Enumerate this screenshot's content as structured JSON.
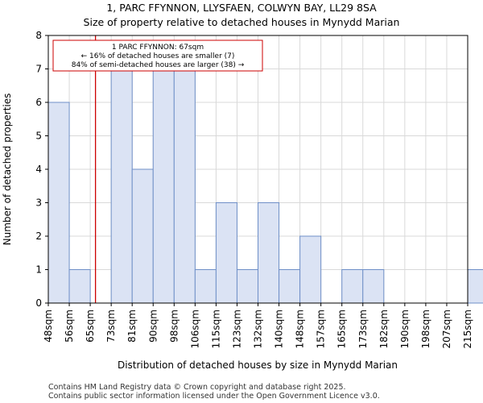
{
  "chart_data": {
    "type": "bar",
    "title": "1, PARC FFYNNON, LLYSFAEN, COLWYN BAY, LL29 8SA",
    "subtitle": "Size of property relative to detached houses in Mynydd Marian",
    "xlabel": "Distribution of detached houses by size in Mynydd Marian",
    "ylabel": "Number of detached properties",
    "categories": [
      "48sqm",
      "56sqm",
      "65sqm",
      "73sqm",
      "81sqm",
      "90sqm",
      "98sqm",
      "106sqm",
      "115sqm",
      "123sqm",
      "132sqm",
      "140sqm",
      "148sqm",
      "157sqm",
      "165sqm",
      "173sqm",
      "182sqm",
      "190sqm",
      "198sqm",
      "207sqm",
      "215sqm"
    ],
    "values": [
      6,
      1,
      0,
      7,
      4,
      7,
      7,
      1,
      3,
      1,
      3,
      1,
      2,
      0,
      1,
      1,
      0,
      0,
      0,
      0,
      1
    ],
    "ylim": [
      0,
      8
    ],
    "yticks": [
      0,
      1,
      2,
      3,
      4,
      5,
      6,
      7,
      8
    ],
    "grid": true,
    "bar_color": "#dbe3f4",
    "bar_edge_color": "#6f8fc7",
    "marker": {
      "value_sqm": 67,
      "color": "#cc0000",
      "annotation_lines": [
        "1 PARC FFYNNON: 67sqm",
        "← 16% of detached houses are smaller (7)",
        "84% of semi-detached houses are larger (38) →"
      ]
    }
  },
  "footer": {
    "line1": "Contains HM Land Registry data © Crown copyright and database right 2025.",
    "line2": "Contains public sector information licensed under the Open Government Licence v3.0."
  }
}
